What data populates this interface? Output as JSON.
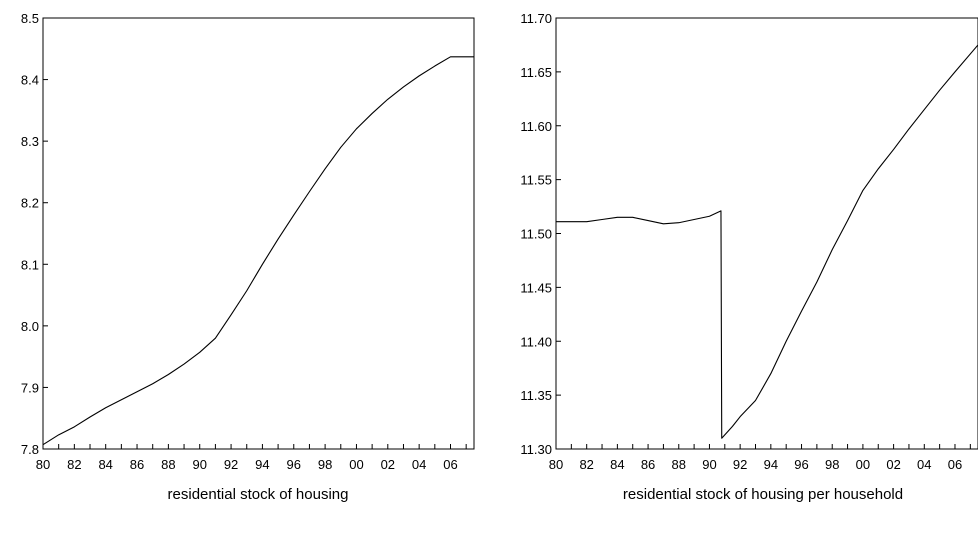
{
  "chart_data": [
    {
      "type": "line",
      "title": "",
      "xlabel": "residential stock of housing",
      "ylabel": "",
      "xlim": [
        1980,
        2007.5
      ],
      "ylim": [
        7.8,
        8.5
      ],
      "x_ticks": [
        1980,
        1982,
        1984,
        1986,
        1988,
        1990,
        1992,
        1994,
        1996,
        1998,
        2000,
        2002,
        2004,
        2006
      ],
      "x_tick_labels": [
        "80",
        "82",
        "84",
        "86",
        "88",
        "90",
        "92",
        "94",
        "96",
        "98",
        "00",
        "02",
        "04",
        "06"
      ],
      "y_ticks": [
        7.8,
        7.9,
        8.0,
        8.1,
        8.2,
        8.3,
        8.4,
        8.5
      ],
      "y_tick_labels": [
        "7.8",
        "7.9",
        "8.0",
        "8.1",
        "8.2",
        "8.3",
        "8.4",
        "8.5"
      ],
      "grid": false,
      "series": [
        {
          "x": [
            1980,
            1981,
            1982,
            1983,
            1984,
            1985,
            1986,
            1987,
            1988,
            1989,
            1990,
            1991,
            1992,
            1993,
            1994,
            1995,
            1996,
            1997,
            1998,
            1999,
            2000,
            2001,
            2002,
            2003,
            2004,
            2005,
            2006,
            2007.5
          ],
          "y": [
            7.807,
            7.823,
            7.836,
            7.852,
            7.867,
            7.88,
            7.893,
            7.906,
            7.921,
            7.938,
            7.957,
            7.98,
            8.018,
            8.057,
            8.1,
            8.141,
            8.18,
            8.218,
            8.255,
            8.29,
            8.32,
            8.345,
            8.368,
            8.388,
            8.406,
            8.422,
            8.437,
            8.437
          ]
        }
      ]
    },
    {
      "type": "line",
      "title": "",
      "xlabel": "residential stock of housing per household",
      "ylabel": "",
      "xlim": [
        1980,
        2007.5
      ],
      "ylim": [
        11.3,
        11.7
      ],
      "x_ticks": [
        1980,
        1982,
        1984,
        1986,
        1988,
        1990,
        1992,
        1994,
        1996,
        1998,
        2000,
        2002,
        2004,
        2006
      ],
      "x_tick_labels": [
        "80",
        "82",
        "84",
        "86",
        "88",
        "90",
        "92",
        "94",
        "96",
        "98",
        "00",
        "02",
        "04",
        "06"
      ],
      "y_ticks": [
        11.3,
        11.35,
        11.4,
        11.45,
        11.5,
        11.55,
        11.6,
        11.65,
        11.7
      ],
      "y_tick_labels": [
        "11.30",
        "11.35",
        "11.40",
        "11.45",
        "11.50",
        "11.55",
        "11.60",
        "11.65",
        "11.70"
      ],
      "grid": false,
      "series": [
        {
          "x": [
            1980,
            1981,
            1982,
            1983,
            1984,
            1985,
            1986,
            1987,
            1988,
            1989,
            1990,
            1990.75,
            1990.8,
            1991.5,
            1992,
            1993,
            1994,
            1995,
            1996,
            1997,
            1998,
            1999,
            2000,
            2001,
            2002,
            2003,
            2004,
            2005,
            2006,
            2007.5
          ],
          "y": [
            11.511,
            11.511,
            11.511,
            11.513,
            11.515,
            11.515,
            11.512,
            11.509,
            11.51,
            11.513,
            11.516,
            11.521,
            11.31,
            11.321,
            11.33,
            11.345,
            11.37,
            11.4,
            11.428,
            11.455,
            11.485,
            11.512,
            11.54,
            11.56,
            11.578,
            11.597,
            11.615,
            11.633,
            11.65,
            11.675
          ]
        }
      ]
    }
  ]
}
